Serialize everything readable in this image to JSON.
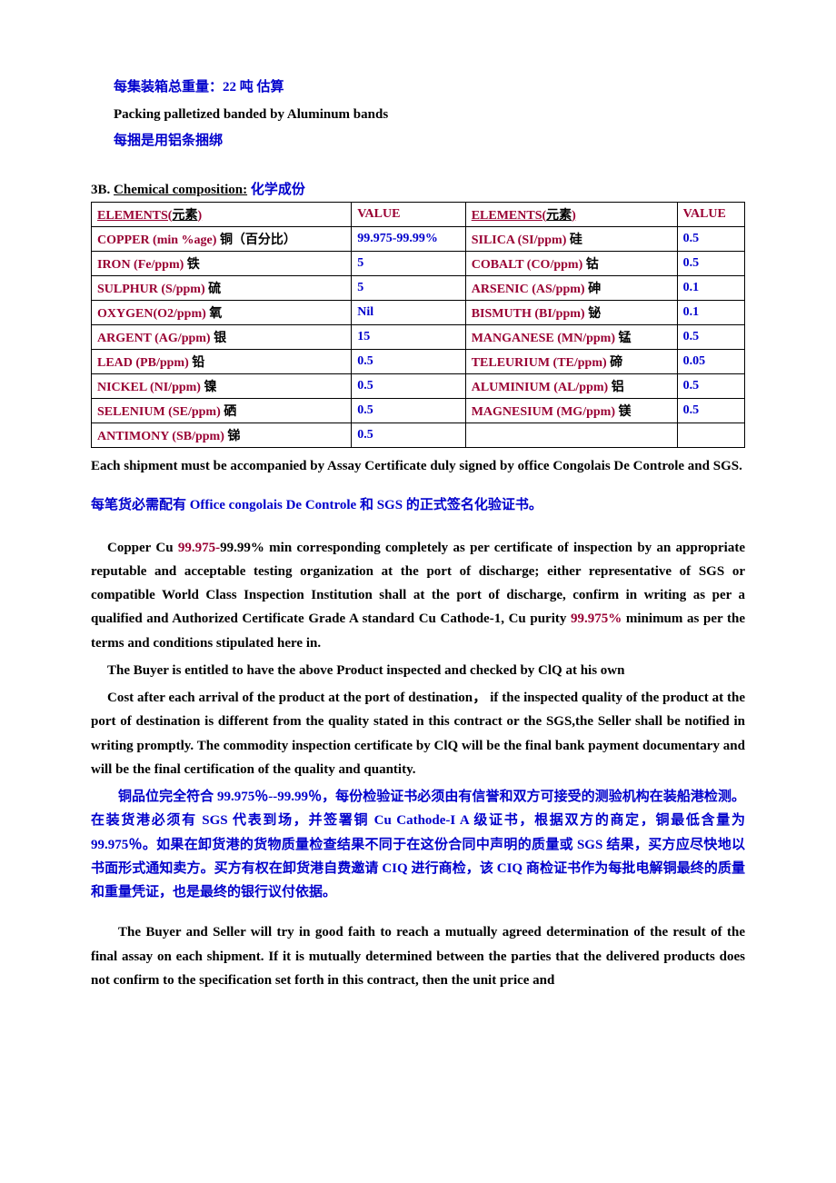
{
  "intro": {
    "line1_blue": "每集装箱总重量：22 吨  估算",
    "line2_black": "Packing palletized banded by Aluminum bands",
    "line3_blue": "每捆是用铝条捆绑"
  },
  "heading": {
    "prefix": "3B. ",
    "main": "Chemical composition:",
    "cn": " 化学成份"
  },
  "table": {
    "header": {
      "c1_en": "ELEMENTS(",
      "c1_cn": "元素",
      "c1_close": ")",
      "c2": "VALUE",
      "c3_en": "ELEMENTS(",
      "c3_cn": "元素",
      "c3_close": ")",
      "c4": "VALUE"
    },
    "rows": [
      {
        "l_en": "COPPER (min %age)",
        "l_cn": " 铜（百分比）",
        "l_val": "99.975-99.99%",
        "r_en": "SILICA (SI/ppm)",
        "r_cn": " 硅",
        "r_val": "0.5"
      },
      {
        "l_en": "IRON (Fe/ppm)",
        "l_cn": " 铁",
        "l_val": "5",
        "r_en": "COBALT (CO/ppm)",
        "r_cn": " 钴",
        "r_val": "0.5"
      },
      {
        "l_en": "SULPHUR (S/ppm)",
        "l_cn": " 硫",
        "l_val": "5",
        "r_en": "ARSENIC (AS/ppm)",
        "r_cn": " 砷",
        "r_val": "0.1"
      },
      {
        "l_en": "OXYGEN(O2/ppm)",
        "l_cn": " 氧",
        "l_val": "Nil",
        "r_en": "BISMUTH (BI/ppm)",
        "r_cn": " 铋",
        "r_val": "0.1"
      },
      {
        "l_en": "ARGENT (AG/ppm)",
        "l_cn": " 银",
        "l_val": "15",
        "r_en": "MANGANESE (MN/ppm)",
        "r_cn": " 锰",
        "r_val": "0.5"
      },
      {
        "l_en": "LEAD (PB/ppm)",
        "l_cn": " 铅",
        "l_val": "0.5",
        "r_en": "TELEURIUM (TE/ppm)",
        "r_cn": " 碲",
        "r_val": "0.05"
      },
      {
        "l_en": "NICKEL (NI/ppm)",
        "l_cn": " 镍",
        "l_val": "0.5",
        "r_en": "ALUMINIUM (AL/ppm)",
        "r_cn": " 铝",
        "r_val": "0.5"
      },
      {
        "l_en": "SELENIUM (SE/ppm)",
        "l_cn": " 硒",
        "l_val": "0.5",
        "r_en": "MAGNESIUM (MG/ppm)",
        "r_cn": " 镁",
        "r_val": "0.5"
      },
      {
        "l_en": "ANTIMONY (SB/ppm)",
        "l_cn": " 锑",
        "l_val": "0.5",
        "r_en": "",
        "r_cn": "",
        "r_val": ""
      }
    ]
  },
  "after_table_black": "Each shipment must be accompanied by Assay Certificate duly signed by office Congolais De Controle and SGS.",
  "after_table_blue": {
    "p1": "每笔货必需配有 ",
    "p2": "Office congolais De Controle ",
    "p3": "和 ",
    "p4": "SGS ",
    "p5": "的正式签名化验证书。"
  },
  "para1": {
    "t1": "Copper Cu ",
    "t2_red": "99.975-",
    "t3": "99.99% min corresponding completely as per certificate of inspection by an appropriate reputable and acceptable testing organization at the port of discharge; either representative of SGS or compatible World Class Inspection Institution shall at the port of discharge, confirm in writing as per a qualified and Authorized Certificate Grade A standard Cu Cathode-1, Cu purity ",
    "t4_red": "99.975%",
    "t5": " minimum as per the terms and conditions stipulated here in."
  },
  "para2": "The Buyer is entitled to have the above Product inspected and checked by ClQ at his own",
  "para3": "Cost after each arrival of the product at the port of destination，  if the inspected quality of the product at the port of destination is different from the quality stated in this contract or the SGS,the Seller shall be notified in writing promptly. The commodity inspection certificate by ClQ will be the final bank payment documentary and will be the final certification of the quality and quantity.",
  "cn_para": {
    "t1": "铜品位完全符合 ",
    "t2": "99.975",
    "t3": "％--",
    "t4": "99.99",
    "t5": "％，每份检验证书必须由有信誉和双方可接受的测验机构在装船港检测。在装货港必须有 ",
    "t6": "SGS ",
    "t7": "代表到场，并签署铜 ",
    "t8": "Cu Cathode-I A ",
    "t9": "级证书，根据双方的商定，铜最低含量为 ",
    "t10": "99.975",
    "t11": "％。如果在卸货港的货物质量检查结果不同于在这份合同中声明的质量或 ",
    "t12": "SGS ",
    "t13": "结果，买方应尽快地以书面形式通知卖方。买方有权在卸货港自费邀请 ",
    "t14": "CIQ ",
    "t15": "进行商检，该 ",
    "t16": "CIQ ",
    "t17": "商检证书作为每批电解铜最终的质量和重量凭证，也是最终的银行议付依据。"
  },
  "para4": "The Buyer and Seller will try in good faith to reach a mutually agreed determination of the result of  the final assay on each shipment. If it is mutually determined between the parties that the delivered products does not confirm to the specification set forth in this contract, then the unit price and"
}
